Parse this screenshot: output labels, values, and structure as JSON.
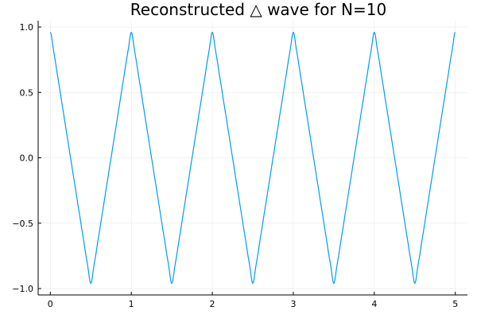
{
  "chart_data": {
    "type": "line",
    "title": "Reconstructed △ wave for N=10",
    "xlabel": "",
    "ylabel": "",
    "xlim": [
      -0.15,
      5.15
    ],
    "ylim": [
      -1.0,
      1.0
    ],
    "grid": true,
    "legend": "none",
    "x_ticks": [
      0,
      1,
      2,
      3,
      4,
      5
    ],
    "x_tick_labels": [
      "0",
      "1",
      "2",
      "3",
      "4",
      "5"
    ],
    "y_ticks": [
      -1.0,
      -0.5,
      0.0,
      0.5,
      1.0
    ],
    "y_tick_labels": [
      "−1.0",
      "−0.5",
      "0.0",
      "0.5",
      "1.0"
    ],
    "series": [
      {
        "color": "#009AFA",
        "x": [
          0,
          0.5,
          1,
          1.5,
          2,
          2.5,
          3,
          3.5,
          4,
          4.5,
          5
        ],
        "y": [
          0.96,
          -0.96,
          0.96,
          -0.96,
          0.96,
          -0.96,
          0.96,
          -0.96,
          0.96,
          -0.96,
          0.96
        ]
      }
    ]
  }
}
